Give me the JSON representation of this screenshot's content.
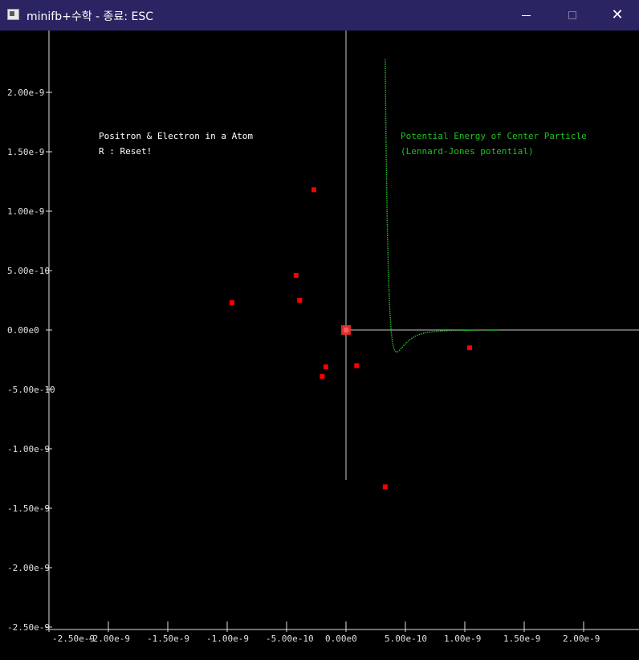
{
  "window": {
    "title": "minifb+수학 - 종료: ESC",
    "icon": "app-window-icon",
    "controls": {
      "minimize_icon": "minimize-icon",
      "maximize_icon": "maximize-icon",
      "close_icon": "close-icon",
      "close_glyph": "✕"
    }
  },
  "scene": {
    "info_line1": "Positron & Electron in a Atom",
    "info_line2": "R : Reset!",
    "potential_title": "Potential Energy of Center Particle",
    "potential_subtitle": "(Lennard-Jones potential)"
  },
  "chart_data": {
    "type": "scatter",
    "x_ticks": [
      "-2.50e-9",
      "-2.00e-9",
      "-1.50e-9",
      "-1.00e-9",
      "-5.00e-10",
      "0.00e0",
      "5.00e-10",
      "1.00e-9",
      "1.50e-9",
      "2.00e-9"
    ],
    "y_ticks": [
      "2.00e-9",
      "1.50e-9",
      "1.00e-9",
      "5.00e-10",
      "0.00e0",
      "-5.00e-10",
      "-1.00e-9",
      "-1.50e-9",
      "-2.00e-9",
      "-2.50e-9"
    ],
    "x_tick_values": [
      -2.5e-09,
      -2e-09,
      -1.5e-09,
      -1e-09,
      -5e-10,
      0,
      5e-10,
      1e-09,
      1.5e-09,
      2e-09
    ],
    "y_tick_values": [
      2e-09,
      1.5e-09,
      1e-09,
      5e-10,
      0,
      -5e-10,
      -1e-09,
      -1.5e-09,
      -2e-09,
      -2.5e-09
    ],
    "xlim": [
      -2.5e-09,
      2.45e-09
    ],
    "ylim": [
      -2.5e-09,
      2.4e-09
    ],
    "particles": [
      {
        "x": -2.7e-10,
        "y": 1.18e-09
      },
      {
        "x": -4.2e-10,
        "y": 4.6e-10
      },
      {
        "x": -3.9e-10,
        "y": 2.5e-10
      },
      {
        "x": -9.6e-10,
        "y": 2.3e-10
      },
      {
        "x": -1.7e-10,
        "y": -3.1e-10
      },
      {
        "x": -2e-10,
        "y": -3.9e-10
      },
      {
        "x": 9e-11,
        "y": -3e-10
      },
      {
        "x": 1.04e-09,
        "y": -1.5e-10
      },
      {
        "x": 3.3e-10,
        "y": -1.32e-09
      }
    ],
    "center_particle": {
      "x": 0,
      "y": 0
    },
    "lj_potential": {
      "sigma": 3.8e-10,
      "rmin_value_y": -1.85e-10,
      "r_start": 2.2e-10,
      "r_end": 1.3e-09
    },
    "colors": {
      "axes": "#c8c8c8",
      "ticks": "#e0e0e0",
      "particles": "#ff0000",
      "center": "#ff3030",
      "potential": "#22c022",
      "info_text": "#ffffff",
      "potential_text": "#22c022"
    }
  }
}
